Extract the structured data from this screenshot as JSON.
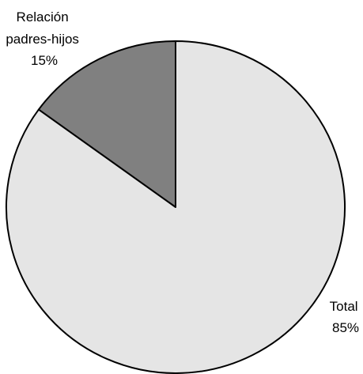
{
  "chart_data": {
    "type": "pie",
    "title": "",
    "slices": [
      {
        "label": [
          "Relación",
          "padres-hijos"
        ],
        "value": 15,
        "value_label": "15%",
        "color": "#808080"
      },
      {
        "label": [
          "Total"
        ],
        "value": 85,
        "value_label": "85%",
        "color": "#e5e5e5"
      }
    ],
    "start_angle": "12 o'clock",
    "direction": "counterclockwise",
    "stroke_color": "#000000",
    "legend": "none"
  }
}
